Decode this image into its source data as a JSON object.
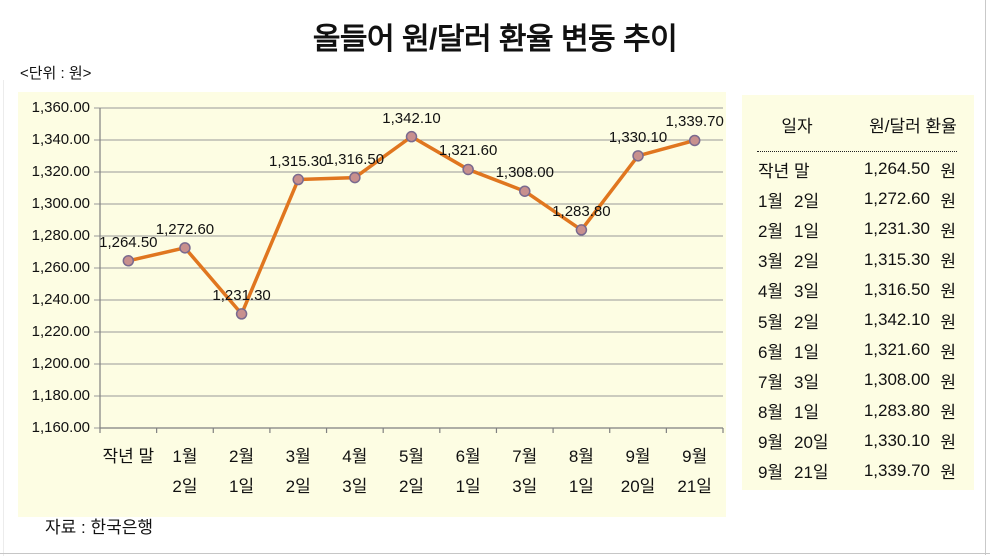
{
  "page": {
    "title": "올들어 원/달러 환율 변동 추이",
    "unit_label": "<단위 : 원>",
    "source_label": "자료 : 한국은행"
  },
  "chart_data": {
    "type": "line",
    "title": "올들어 원/달러 환율 변동 추이",
    "categories": [
      "작년 말",
      "1월 2일",
      "2월 1일",
      "3월 2일",
      "4월 3일",
      "5월 2일",
      "6월 1일",
      "7월 3일",
      "8월 1일",
      "9월 20일",
      "9월 21일"
    ],
    "x_tick_lines": [
      [
        "작년 말",
        ""
      ],
      [
        "1월",
        "2일"
      ],
      [
        "2월",
        "1일"
      ],
      [
        "3월",
        "2일"
      ],
      [
        "4월",
        "3일"
      ],
      [
        "5월",
        "2일"
      ],
      [
        "6월",
        "1일"
      ],
      [
        "7월",
        "3일"
      ],
      [
        "8월",
        "1일"
      ],
      [
        "9월",
        "20일"
      ],
      [
        "9월",
        "21일"
      ]
    ],
    "values": [
      1264.5,
      1272.6,
      1231.3,
      1315.3,
      1316.5,
      1342.1,
      1321.6,
      1308.0,
      1283.8,
      1330.1,
      1339.7
    ],
    "ylim": [
      1160,
      1360
    ],
    "ytick_step": 20,
    "grid": true,
    "legend": "none",
    "unit": "원",
    "colors": {
      "line": "#E0761F",
      "marker_fill": "#C8908E",
      "marker_stroke": "#7A6A8E",
      "plot_bg": "#FDFDE3",
      "grid": "#999999",
      "axis": "#808080"
    }
  },
  "table": {
    "headers": [
      "일자",
      "원/달러 환율"
    ],
    "unit": "원",
    "rows": [
      {
        "month": "작년 말",
        "day": "",
        "value": "1,264.50"
      },
      {
        "month": "1월",
        "day": "2일",
        "value": "1,272.60"
      },
      {
        "month": "2월",
        "day": "1일",
        "value": "1,231.30"
      },
      {
        "month": "3월",
        "day": "2일",
        "value": "1,315.30"
      },
      {
        "month": "4월",
        "day": "3일",
        "value": "1,316.50"
      },
      {
        "month": "5월",
        "day": "2일",
        "value": "1,342.10"
      },
      {
        "month": "6월",
        "day": "1일",
        "value": "1,321.60"
      },
      {
        "month": "7월",
        "day": "3일",
        "value": "1,308.00"
      },
      {
        "month": "8월",
        "day": "1일",
        "value": "1,283.80"
      },
      {
        "month": "9월",
        "day": "20일",
        "value": "1,330.10"
      },
      {
        "month": "9월",
        "day": "21일",
        "value": "1,339.70"
      }
    ]
  }
}
